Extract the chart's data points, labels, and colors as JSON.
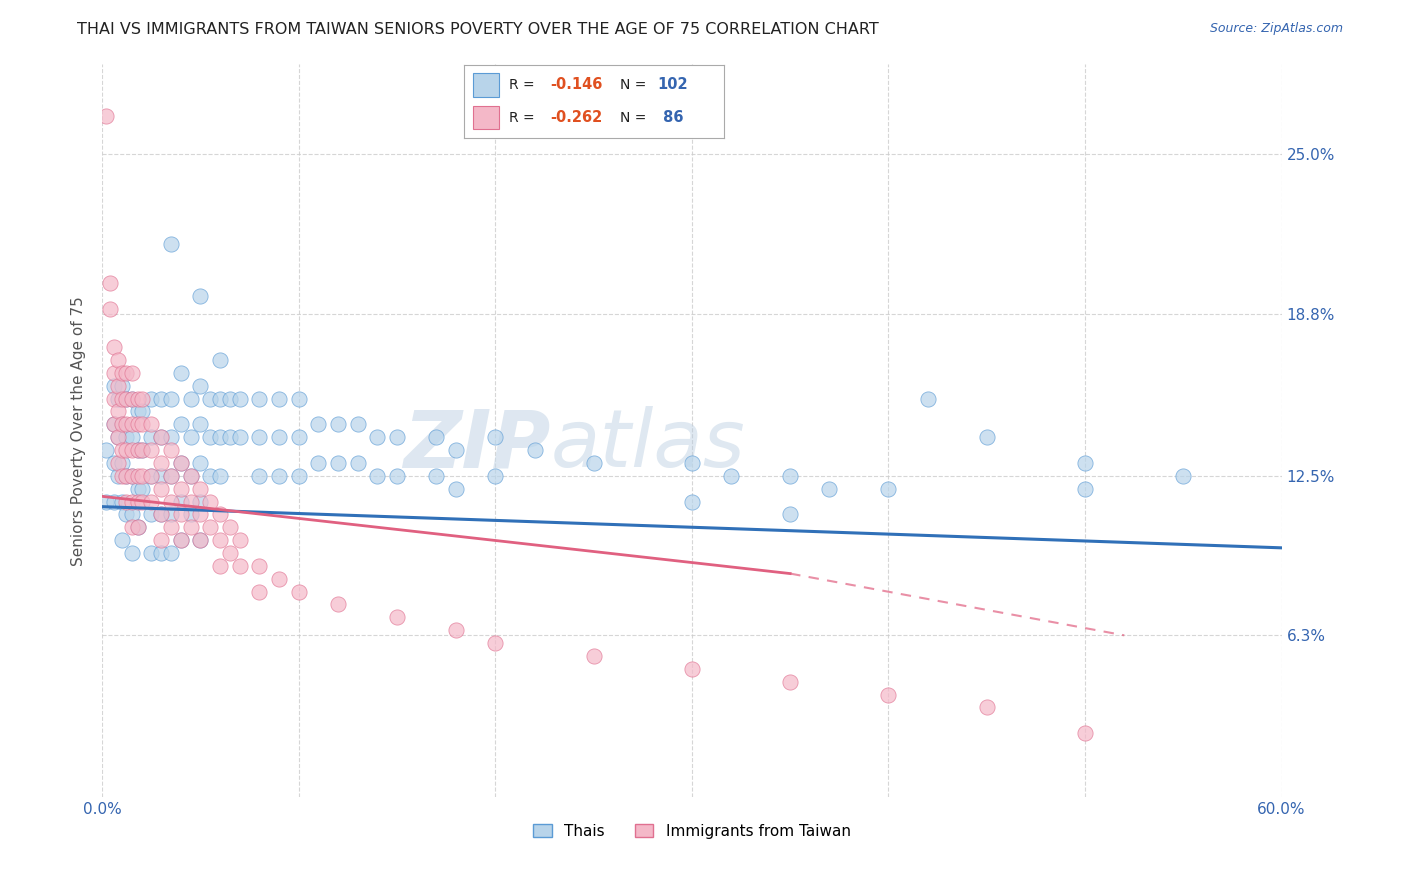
{
  "title": "THAI VS IMMIGRANTS FROM TAIWAN SENIORS POVERTY OVER THE AGE OF 75 CORRELATION CHART",
  "source": "Source: ZipAtlas.com",
  "ylabel": "Seniors Poverty Over the Age of 75",
  "ytick_labels": [
    "25.0%",
    "18.8%",
    "12.5%",
    "6.3%"
  ],
  "ytick_values": [
    0.25,
    0.188,
    0.125,
    0.063
  ],
  "xmin": 0.0,
  "xmax": 0.6,
  "ymin": 0.0,
  "ymax": 0.285,
  "thai_color": "#b8d4ea",
  "taiwan_color": "#f4b8c8",
  "thai_edge_color": "#5b9bd5",
  "taiwan_edge_color": "#e07090",
  "thai_line_color": "#3070b8",
  "taiwan_line_color": "#e06080",
  "background_color": "#ffffff",
  "watermark_color": "#ccd8e8",
  "thai_scatter": [
    [
      0.002,
      0.135
    ],
    [
      0.002,
      0.115
    ],
    [
      0.006,
      0.16
    ],
    [
      0.006,
      0.145
    ],
    [
      0.006,
      0.13
    ],
    [
      0.006,
      0.115
    ],
    [
      0.008,
      0.155
    ],
    [
      0.008,
      0.14
    ],
    [
      0.008,
      0.125
    ],
    [
      0.01,
      0.16
    ],
    [
      0.01,
      0.145
    ],
    [
      0.01,
      0.13
    ],
    [
      0.01,
      0.115
    ],
    [
      0.01,
      0.1
    ],
    [
      0.012,
      0.155
    ],
    [
      0.012,
      0.14
    ],
    [
      0.012,
      0.125
    ],
    [
      0.012,
      0.11
    ],
    [
      0.015,
      0.155
    ],
    [
      0.015,
      0.14
    ],
    [
      0.015,
      0.125
    ],
    [
      0.015,
      0.11
    ],
    [
      0.015,
      0.095
    ],
    [
      0.018,
      0.15
    ],
    [
      0.018,
      0.135
    ],
    [
      0.018,
      0.12
    ],
    [
      0.018,
      0.105
    ],
    [
      0.02,
      0.15
    ],
    [
      0.02,
      0.135
    ],
    [
      0.02,
      0.12
    ],
    [
      0.025,
      0.155
    ],
    [
      0.025,
      0.14
    ],
    [
      0.025,
      0.125
    ],
    [
      0.025,
      0.11
    ],
    [
      0.025,
      0.095
    ],
    [
      0.03,
      0.155
    ],
    [
      0.03,
      0.14
    ],
    [
      0.03,
      0.125
    ],
    [
      0.03,
      0.11
    ],
    [
      0.03,
      0.095
    ],
    [
      0.035,
      0.215
    ],
    [
      0.035,
      0.155
    ],
    [
      0.035,
      0.14
    ],
    [
      0.035,
      0.125
    ],
    [
      0.035,
      0.11
    ],
    [
      0.035,
      0.095
    ],
    [
      0.04,
      0.165
    ],
    [
      0.04,
      0.145
    ],
    [
      0.04,
      0.13
    ],
    [
      0.04,
      0.115
    ],
    [
      0.04,
      0.1
    ],
    [
      0.045,
      0.155
    ],
    [
      0.045,
      0.14
    ],
    [
      0.045,
      0.125
    ],
    [
      0.045,
      0.11
    ],
    [
      0.05,
      0.195
    ],
    [
      0.05,
      0.16
    ],
    [
      0.05,
      0.145
    ],
    [
      0.05,
      0.13
    ],
    [
      0.05,
      0.115
    ],
    [
      0.05,
      0.1
    ],
    [
      0.055,
      0.155
    ],
    [
      0.055,
      0.14
    ],
    [
      0.055,
      0.125
    ],
    [
      0.06,
      0.17
    ],
    [
      0.06,
      0.155
    ],
    [
      0.06,
      0.14
    ],
    [
      0.06,
      0.125
    ],
    [
      0.065,
      0.155
    ],
    [
      0.065,
      0.14
    ],
    [
      0.07,
      0.155
    ],
    [
      0.07,
      0.14
    ],
    [
      0.08,
      0.155
    ],
    [
      0.08,
      0.14
    ],
    [
      0.08,
      0.125
    ],
    [
      0.09,
      0.155
    ],
    [
      0.09,
      0.14
    ],
    [
      0.09,
      0.125
    ],
    [
      0.1,
      0.155
    ],
    [
      0.1,
      0.14
    ],
    [
      0.1,
      0.125
    ],
    [
      0.11,
      0.145
    ],
    [
      0.11,
      0.13
    ],
    [
      0.12,
      0.145
    ],
    [
      0.12,
      0.13
    ],
    [
      0.13,
      0.145
    ],
    [
      0.13,
      0.13
    ],
    [
      0.14,
      0.14
    ],
    [
      0.14,
      0.125
    ],
    [
      0.15,
      0.14
    ],
    [
      0.15,
      0.125
    ],
    [
      0.17,
      0.14
    ],
    [
      0.17,
      0.125
    ],
    [
      0.18,
      0.135
    ],
    [
      0.18,
      0.12
    ],
    [
      0.2,
      0.14
    ],
    [
      0.2,
      0.125
    ],
    [
      0.22,
      0.135
    ],
    [
      0.25,
      0.13
    ],
    [
      0.3,
      0.13
    ],
    [
      0.3,
      0.115
    ],
    [
      0.32,
      0.125
    ],
    [
      0.35,
      0.125
    ],
    [
      0.35,
      0.11
    ],
    [
      0.37,
      0.12
    ],
    [
      0.4,
      0.12
    ],
    [
      0.42,
      0.155
    ],
    [
      0.45,
      0.14
    ],
    [
      0.5,
      0.13
    ],
    [
      0.5,
      0.12
    ],
    [
      0.55,
      0.125
    ]
  ],
  "taiwan_scatter": [
    [
      0.002,
      0.265
    ],
    [
      0.004,
      0.2
    ],
    [
      0.004,
      0.19
    ],
    [
      0.006,
      0.175
    ],
    [
      0.006,
      0.165
    ],
    [
      0.006,
      0.155
    ],
    [
      0.006,
      0.145
    ],
    [
      0.008,
      0.17
    ],
    [
      0.008,
      0.16
    ],
    [
      0.008,
      0.15
    ],
    [
      0.008,
      0.14
    ],
    [
      0.008,
      0.13
    ],
    [
      0.01,
      0.165
    ],
    [
      0.01,
      0.155
    ],
    [
      0.01,
      0.145
    ],
    [
      0.01,
      0.135
    ],
    [
      0.01,
      0.125
    ],
    [
      0.012,
      0.165
    ],
    [
      0.012,
      0.155
    ],
    [
      0.012,
      0.145
    ],
    [
      0.012,
      0.135
    ],
    [
      0.012,
      0.125
    ],
    [
      0.012,
      0.115
    ],
    [
      0.015,
      0.165
    ],
    [
      0.015,
      0.155
    ],
    [
      0.015,
      0.145
    ],
    [
      0.015,
      0.135
    ],
    [
      0.015,
      0.125
    ],
    [
      0.015,
      0.115
    ],
    [
      0.015,
      0.105
    ],
    [
      0.018,
      0.155
    ],
    [
      0.018,
      0.145
    ],
    [
      0.018,
      0.135
    ],
    [
      0.018,
      0.125
    ],
    [
      0.018,
      0.115
    ],
    [
      0.018,
      0.105
    ],
    [
      0.02,
      0.155
    ],
    [
      0.02,
      0.145
    ],
    [
      0.02,
      0.135
    ],
    [
      0.02,
      0.125
    ],
    [
      0.02,
      0.115
    ],
    [
      0.025,
      0.145
    ],
    [
      0.025,
      0.135
    ],
    [
      0.025,
      0.125
    ],
    [
      0.025,
      0.115
    ],
    [
      0.03,
      0.14
    ],
    [
      0.03,
      0.13
    ],
    [
      0.03,
      0.12
    ],
    [
      0.03,
      0.11
    ],
    [
      0.03,
      0.1
    ],
    [
      0.035,
      0.135
    ],
    [
      0.035,
      0.125
    ],
    [
      0.035,
      0.115
    ],
    [
      0.035,
      0.105
    ],
    [
      0.04,
      0.13
    ],
    [
      0.04,
      0.12
    ],
    [
      0.04,
      0.11
    ],
    [
      0.04,
      0.1
    ],
    [
      0.045,
      0.125
    ],
    [
      0.045,
      0.115
    ],
    [
      0.045,
      0.105
    ],
    [
      0.05,
      0.12
    ],
    [
      0.05,
      0.11
    ],
    [
      0.05,
      0.1
    ],
    [
      0.055,
      0.115
    ],
    [
      0.055,
      0.105
    ],
    [
      0.06,
      0.11
    ],
    [
      0.06,
      0.1
    ],
    [
      0.06,
      0.09
    ],
    [
      0.065,
      0.105
    ],
    [
      0.065,
      0.095
    ],
    [
      0.07,
      0.1
    ],
    [
      0.07,
      0.09
    ],
    [
      0.08,
      0.09
    ],
    [
      0.08,
      0.08
    ],
    [
      0.09,
      0.085
    ],
    [
      0.1,
      0.08
    ],
    [
      0.12,
      0.075
    ],
    [
      0.15,
      0.07
    ],
    [
      0.18,
      0.065
    ],
    [
      0.2,
      0.06
    ],
    [
      0.25,
      0.055
    ],
    [
      0.3,
      0.05
    ],
    [
      0.35,
      0.045
    ],
    [
      0.4,
      0.04
    ],
    [
      0.45,
      0.035
    ],
    [
      0.5,
      0.025
    ]
  ]
}
